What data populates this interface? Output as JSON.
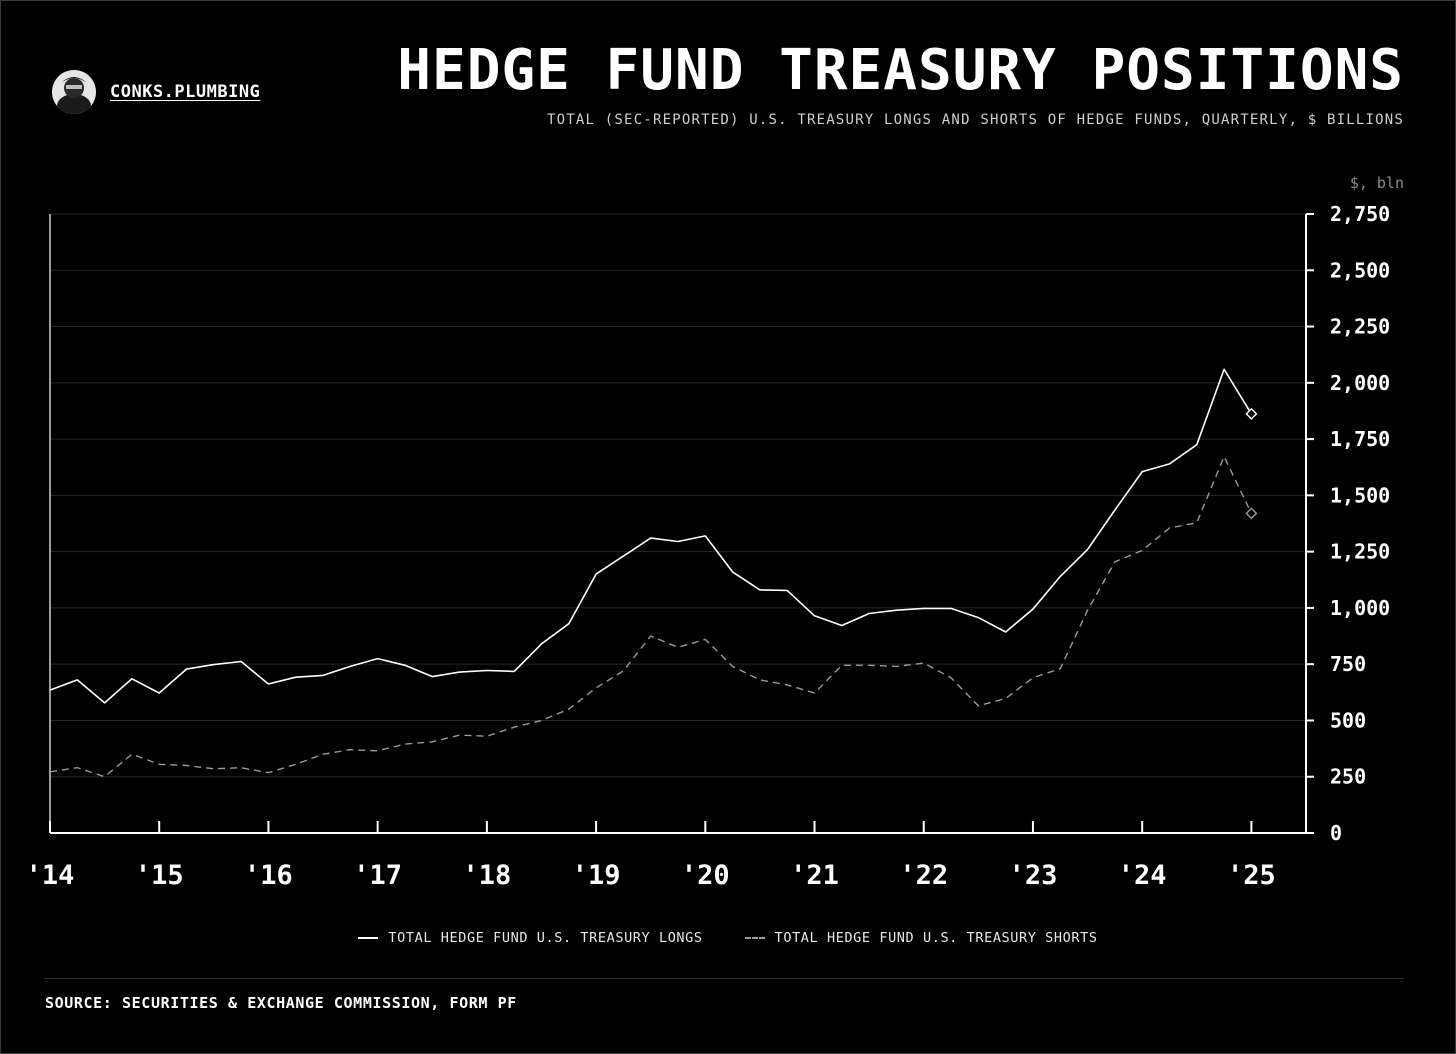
{
  "brand": {
    "name": "CONKS.PLUMBING",
    "logo_icon": "masked-figure-avatar"
  },
  "header": {
    "title": "HEDGE FUND TREASURY POSITIONS",
    "subtitle": "TOTAL (SEC-REPORTED) U.S. TREASURY LONGS AND SHORTS OF HEDGE FUNDS, QUARTERLY, $ BILLIONS",
    "unit_label": "$, bln"
  },
  "legend": {
    "longs": "TOTAL HEDGE FUND U.S. TREASURY LONGS",
    "shorts": "TOTAL HEDGE FUND U.S. TREASURY SHORTS"
  },
  "footer": {
    "source": "SOURCE: SECURITIES & EXCHANGE COMMISSION, FORM PF"
  },
  "colors": {
    "background": "#000000",
    "longs": "#ffffff",
    "shorts": "#9a9a9a",
    "grid": "#262626"
  },
  "chart_data": {
    "type": "line",
    "title": "HEDGE FUND TREASURY POSITIONS",
    "ylabel": "$, bln",
    "xlabel": "",
    "ylim": [
      0,
      2750
    ],
    "xlim": [
      2014.0,
      2025.5
    ],
    "y_ticks": [
      0,
      250,
      500,
      750,
      1000,
      1250,
      1500,
      1750,
      2000,
      2250,
      2500,
      2750
    ],
    "y_tick_labels": [
      "0",
      "250",
      "500",
      "750",
      "1,000",
      "1,250",
      "1,500",
      "1,750",
      "2,000",
      "2,250",
      "2,500",
      "2,750"
    ],
    "x_ticks": [
      2014,
      2015,
      2016,
      2017,
      2018,
      2019,
      2020,
      2021,
      2022,
      2023,
      2024,
      2025
    ],
    "x_tick_labels": [
      "'14",
      "'15",
      "'16",
      "'17",
      "'18",
      "'19",
      "'20",
      "'21",
      "'22",
      "'23",
      "'24",
      "'25"
    ],
    "y_axis_side": "right",
    "grid": true,
    "legend_position": "bottom",
    "x": [
      "2014-01-01",
      "2014-04-01",
      "2014-07-01",
      "2014-10-01",
      "2015-01-01",
      "2015-04-01",
      "2015-07-01",
      "2015-10-01",
      "2016-01-01",
      "2016-04-01",
      "2016-07-01",
      "2016-10-01",
      "2017-01-01",
      "2017-04-01",
      "2017-07-01",
      "2017-10-01",
      "2018-01-01",
      "2018-04-01",
      "2018-07-01",
      "2018-10-01",
      "2019-01-01",
      "2019-04-01",
      "2019-07-01",
      "2019-10-01",
      "2020-01-01",
      "2020-04-01",
      "2020-07-01",
      "2020-10-01",
      "2021-01-01",
      "2021-04-01",
      "2021-07-01",
      "2021-10-01",
      "2022-01-01",
      "2022-04-01",
      "2022-07-01",
      "2022-10-01",
      "2023-01-01",
      "2023-04-01",
      "2023-07-01",
      "2023-10-01",
      "2024-01-01",
      "2024-04-01",
      "2024-07-01",
      "2024-10-01",
      "2025-01-01"
    ],
    "series": [
      {
        "name": "TOTAL HEDGE FUND U.S. TREASURY LONGS",
        "style": "solid",
        "end_marker": "diamond",
        "values": [
          635,
          680,
          578,
          685,
          622,
          728,
          748,
          762,
          662,
          692,
          700,
          740,
          775,
          745,
          695,
          715,
          722,
          718,
          840,
          930,
          1150,
          1230,
          1310,
          1295,
          1320,
          1160,
          1080,
          1078,
          965,
          922,
          975,
          990,
          998,
          998,
          957,
          893,
          995,
          1140,
          1260,
          1435,
          1605,
          1640,
          1725,
          2060,
          1862
        ]
      },
      {
        "name": "TOTAL HEDGE FUND U.S. TREASURY SHORTS",
        "style": "dashed",
        "end_marker": "diamond",
        "values": [
          272,
          290,
          250,
          350,
          305,
          300,
          285,
          290,
          268,
          305,
          350,
          370,
          365,
          395,
          405,
          435,
          430,
          470,
          500,
          550,
          645,
          720,
          875,
          825,
          860,
          740,
          680,
          658,
          622,
          745,
          745,
          740,
          755,
          690,
          565,
          598,
          690,
          730,
          990,
          1205,
          1255,
          1355,
          1378,
          1672,
          1420
        ]
      }
    ]
  }
}
